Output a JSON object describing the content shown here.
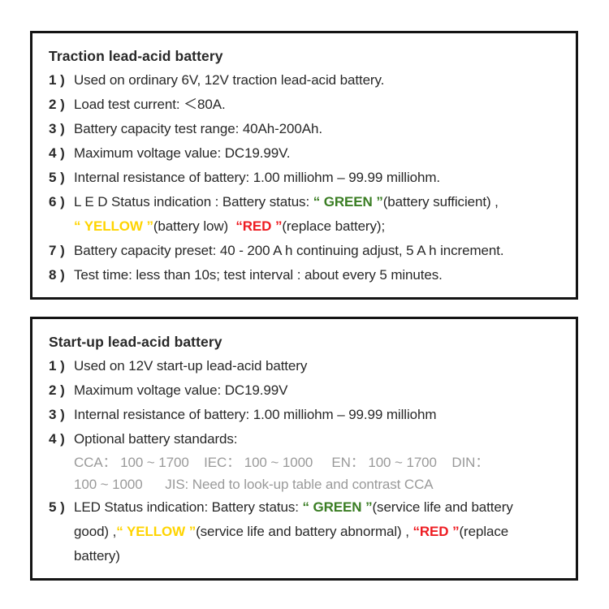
{
  "colors": {
    "green": "#3a7d23",
    "yellow": "#ffd400",
    "red": "#ee1c22",
    "gray": "#9a9a9a",
    "text": "#282828",
    "border": "#141414"
  },
  "panel1": {
    "title": "Traction lead-acid battery",
    "items": [
      {
        "num": "1 )",
        "text": "Used on ordinary 6V, 12V traction lead-acid battery."
      },
      {
        "num": "2 )",
        "text": "Load test current: ＜80A."
      },
      {
        "num": "3 )",
        "text": "Battery capacity test range: 40Ah-200Ah."
      },
      {
        "num": "4 )",
        "text": "Maximum voltage value: DC19.99V."
      },
      {
        "num": "5 )",
        "text": "Internal resistance of battery: 1.00 milliohm – 99.99 milliohm."
      },
      {
        "num": "6 )",
        "line1": [
          {
            "text": "L E D Status indication : Battery status: "
          },
          {
            "text": "“ GREEN ”",
            "color": "green"
          },
          {
            "text": "(battery sufficient) ,"
          }
        ],
        "line2": [
          {
            "text": "“ YELLOW ”",
            "color": "yellow"
          },
          {
            "text": "(battery low)  "
          },
          {
            "text": "“RED ”",
            "color": "red"
          },
          {
            "text": "(replace battery);"
          }
        ]
      },
      {
        "num": "7 )",
        "text": "Battery capacity preset: 40 - 200 A h continuing adjust, 5 A h increment."
      },
      {
        "num": "8 )",
        "text": "Test time: less than 10s; test interval : about every 5 minutes."
      }
    ]
  },
  "panel2": {
    "title": "Start-up lead-acid battery",
    "items": [
      {
        "num": "1 )",
        "text": "Used on 12V start-up lead-acid battery"
      },
      {
        "num": "2 )",
        "text": "Maximum voltage value: DC19.99V"
      },
      {
        "num": "3 )",
        "text": "Internal resistance of battery: 1.00 milliohm – 99.99 milliohm"
      },
      {
        "num": "4 )",
        "text": "Optional battery standards:",
        "gray1": "CCA： 100 ~ 1700    IEC： 100 ~ 1000     EN： 100 ~ 1700    DIN：",
        "gray2": "100 ~ 1000      JIS: Need to look-up table and contrast CCA"
      },
      {
        "num": "5 )",
        "line1": [
          {
            "text": "LED Status indication: Battery status: "
          },
          {
            "text": "“ GREEN ”",
            "color": "green"
          },
          {
            "text": "(service life and battery"
          }
        ],
        "line2": [
          {
            "text": "good) ,"
          },
          {
            "text": "“ YELLOW ”",
            "color": "yellow"
          },
          {
            "text": "(service life and battery abnormal) , "
          },
          {
            "text": "“RED ”",
            "color": "red"
          },
          {
            "text": "(replace"
          }
        ],
        "line3": [
          {
            "text": "battery)"
          }
        ]
      }
    ]
  }
}
